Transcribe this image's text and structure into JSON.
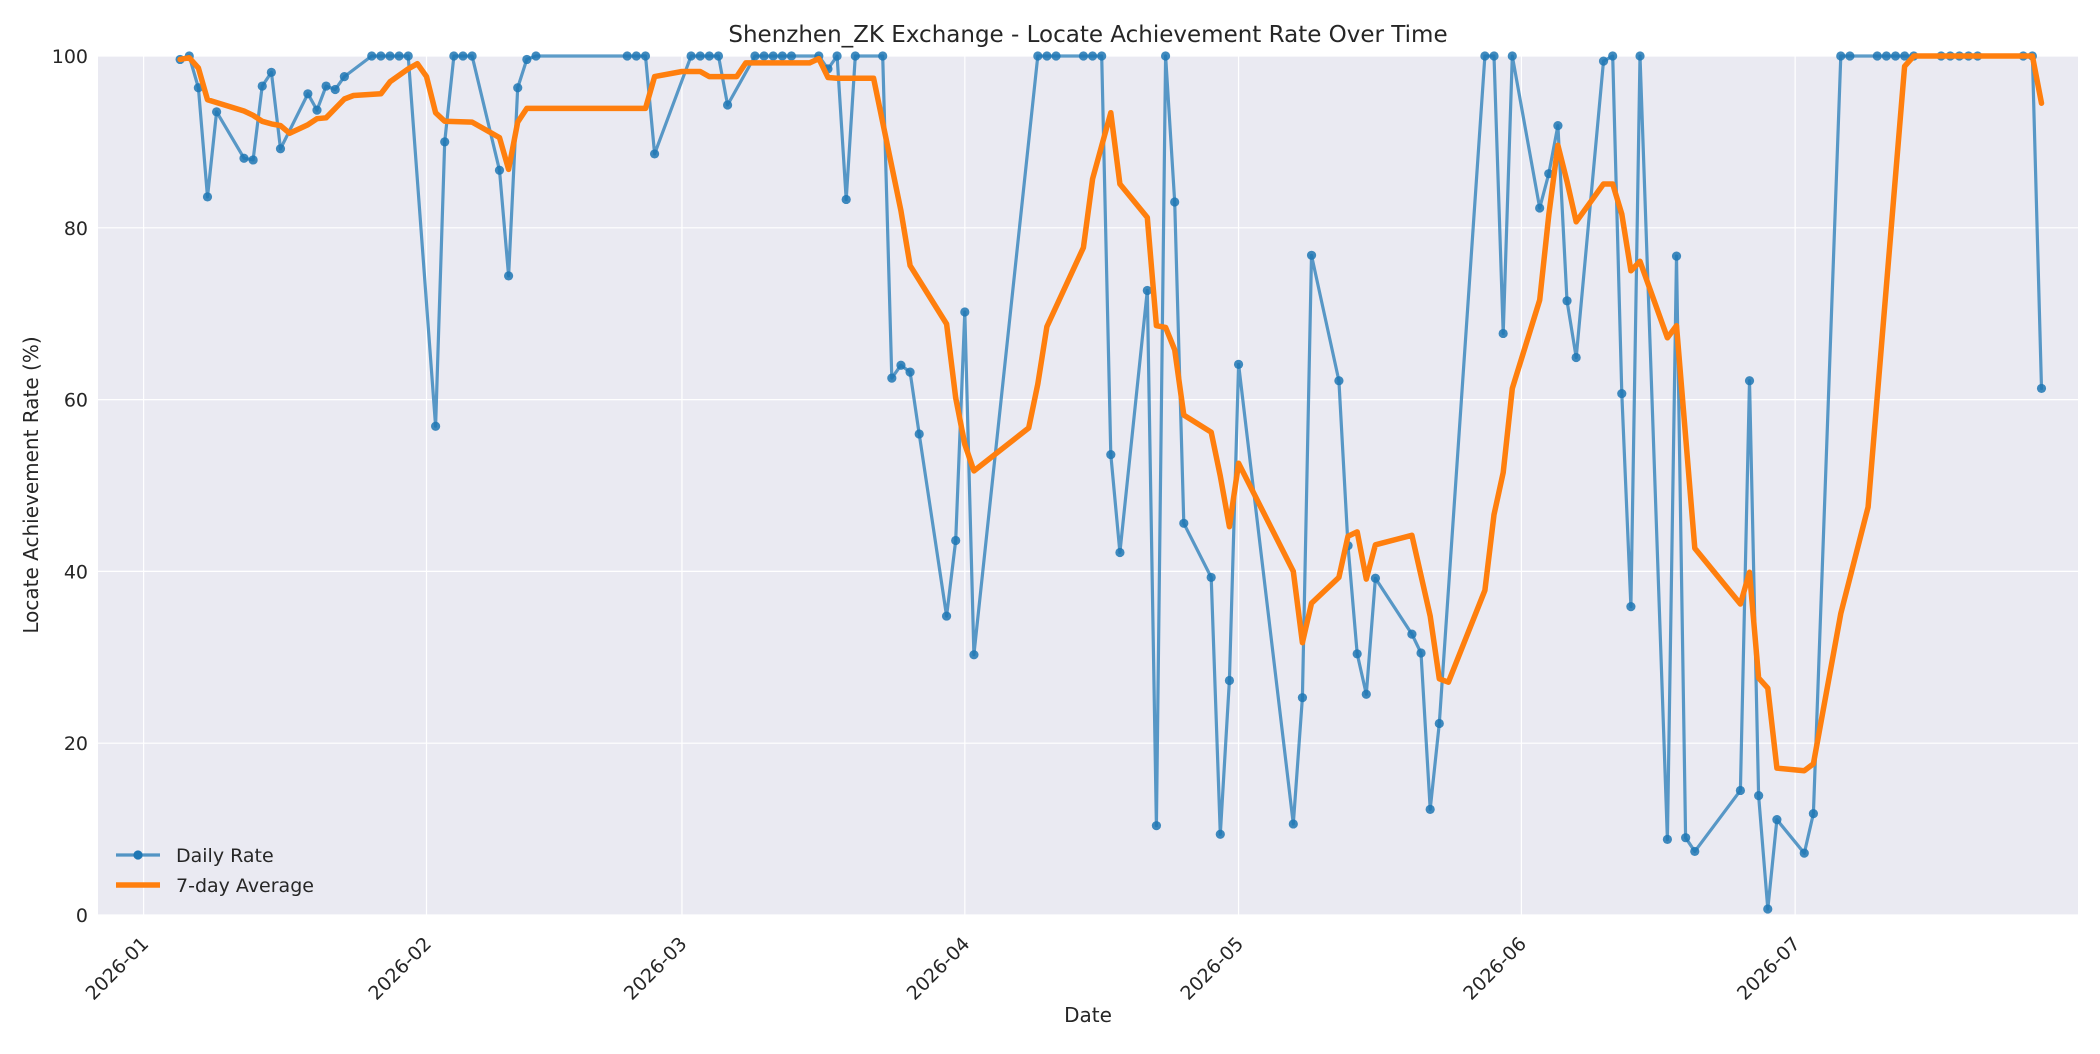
{
  "chart_data": {
    "type": "line",
    "title": "Shenzhen_ZK Exchange - Locate Achievement Rate Over Time",
    "xlabel": "Date",
    "ylabel": "Locate Achievement Rate (%)",
    "xlim": [
      "2025-12-27",
      "2026-08-01"
    ],
    "ylim": [
      0,
      100
    ],
    "x_ticks": [
      "2026-01-01",
      "2026-02-01",
      "2026-03-01",
      "2026-04-01",
      "2026-05-01",
      "2026-06-01",
      "2026-07-01"
    ],
    "x_tick_labels": [
      "2026-01",
      "2026-02",
      "2026-03",
      "2026-04",
      "2026-05",
      "2026-06",
      "2026-07"
    ],
    "y_ticks": [
      0,
      20,
      40,
      60,
      80,
      100
    ],
    "grid": true,
    "legend": "lower-left",
    "series": [
      {
        "name": "Daily Rate",
        "color": "#1f77b4",
        "style": "line-markers",
        "points": [
          [
            "2026-01-05",
            99.6
          ],
          [
            "2026-01-06",
            100
          ],
          [
            "2026-01-07",
            96.3
          ],
          [
            "2026-01-08",
            83.6
          ],
          [
            "2026-01-09",
            93.5
          ],
          [
            "2026-01-12",
            88.1
          ],
          [
            "2026-01-13",
            87.9
          ],
          [
            "2026-01-14",
            96.5
          ],
          [
            "2026-01-15",
            98.1
          ],
          [
            "2026-01-16",
            89.2
          ],
          [
            "2026-01-19",
            95.6
          ],
          [
            "2026-01-20",
            93.7
          ],
          [
            "2026-01-21",
            96.5
          ],
          [
            "2026-01-22",
            96.1
          ],
          [
            "2026-01-23",
            97.6
          ],
          [
            "2026-01-26",
            100
          ],
          [
            "2026-01-27",
            100
          ],
          [
            "2026-01-28",
            100
          ],
          [
            "2026-01-29",
            100
          ],
          [
            "2026-01-30",
            100
          ],
          [
            "2026-02-02",
            56.9
          ],
          [
            "2026-02-03",
            90
          ],
          [
            "2026-02-04",
            100
          ],
          [
            "2026-02-05",
            100
          ],
          [
            "2026-02-06",
            100
          ],
          [
            "2026-02-09",
            86.7
          ],
          [
            "2026-02-10",
            74.4
          ],
          [
            "2026-02-11",
            96.3
          ],
          [
            "2026-02-12",
            99.6
          ],
          [
            "2026-02-13",
            100
          ],
          [
            "2026-02-23",
            100
          ],
          [
            "2026-02-24",
            100
          ],
          [
            "2026-02-25",
            100
          ],
          [
            "2026-02-26",
            88.6
          ],
          [
            "2026-03-02",
            100
          ],
          [
            "2026-03-03",
            100
          ],
          [
            "2026-03-04",
            100
          ],
          [
            "2026-03-05",
            100
          ],
          [
            "2026-03-06",
            94.3
          ],
          [
            "2026-03-09",
            100
          ],
          [
            "2026-03-10",
            100
          ],
          [
            "2026-03-11",
            100
          ],
          [
            "2026-03-12",
            100
          ],
          [
            "2026-03-13",
            100
          ],
          [
            "2026-03-16",
            100
          ],
          [
            "2026-03-17",
            98.5
          ],
          [
            "2026-03-18",
            100
          ],
          [
            "2026-03-19",
            83.3
          ],
          [
            "2026-03-20",
            100
          ],
          [
            "2026-03-23",
            100
          ],
          [
            "2026-03-24",
            62.5
          ],
          [
            "2026-03-25",
            64
          ],
          [
            "2026-03-26",
            63.2
          ],
          [
            "2026-03-27",
            56
          ],
          [
            "2026-03-30",
            34.8
          ],
          [
            "2026-03-31",
            43.6
          ],
          [
            "2026-04-01",
            70.2
          ],
          [
            "2026-04-02",
            30.3
          ],
          [
            "2026-04-09",
            100
          ],
          [
            "2026-04-10",
            100
          ],
          [
            "2026-04-11",
            100
          ],
          [
            "2026-04-14",
            100
          ],
          [
            "2026-04-15",
            100
          ],
          [
            "2026-04-16",
            100
          ],
          [
            "2026-04-17",
            53.6
          ],
          [
            "2026-04-18",
            42.2
          ],
          [
            "2026-04-21",
            72.7
          ],
          [
            "2026-04-22",
            10.4
          ],
          [
            "2026-04-23",
            100
          ],
          [
            "2026-04-24",
            83
          ],
          [
            "2026-04-25",
            45.6
          ],
          [
            "2026-04-28",
            39.3
          ],
          [
            "2026-04-29",
            9.4
          ],
          [
            "2026-04-30",
            27.3
          ],
          [
            "2026-05-01",
            64.1
          ],
          [
            "2026-05-07",
            10.6
          ],
          [
            "2026-05-08",
            25.3
          ],
          [
            "2026-05-09",
            76.8
          ],
          [
            "2026-05-12",
            62.2
          ],
          [
            "2026-05-13",
            43
          ],
          [
            "2026-05-14",
            30.4
          ],
          [
            "2026-05-15",
            25.7
          ],
          [
            "2026-05-16",
            39.2
          ],
          [
            "2026-05-20",
            32.7
          ],
          [
            "2026-05-21",
            30.5
          ],
          [
            "2026-05-22",
            12.3
          ],
          [
            "2026-05-23",
            22.3
          ],
          [
            "2026-05-28",
            100
          ],
          [
            "2026-05-29",
            100
          ],
          [
            "2026-05-30",
            67.7
          ],
          [
            "2026-05-31",
            100
          ],
          [
            "2026-06-03",
            82.3
          ],
          [
            "2026-06-04",
            86.3
          ],
          [
            "2026-06-05",
            91.9
          ],
          [
            "2026-06-06",
            71.5
          ],
          [
            "2026-06-07",
            64.9
          ],
          [
            "2026-06-10",
            99.4
          ],
          [
            "2026-06-11",
            100
          ],
          [
            "2026-06-12",
            60.7
          ],
          [
            "2026-06-13",
            35.9
          ],
          [
            "2026-06-14",
            100
          ],
          [
            "2026-06-17",
            8.8
          ],
          [
            "2026-06-18",
            76.7
          ],
          [
            "2026-06-19",
            9
          ],
          [
            "2026-06-20",
            7.4
          ],
          [
            "2026-06-25",
            14.5
          ],
          [
            "2026-06-26",
            62.2
          ],
          [
            "2026-06-27",
            13.9
          ],
          [
            "2026-06-28",
            0.7
          ],
          [
            "2026-06-29",
            11.1
          ],
          [
            "2026-07-02",
            7.2
          ],
          [
            "2026-07-03",
            11.8
          ],
          [
            "2026-07-06",
            100
          ],
          [
            "2026-07-07",
            100
          ],
          [
            "2026-07-10",
            100
          ],
          [
            "2026-07-11",
            100
          ],
          [
            "2026-07-12",
            100
          ],
          [
            "2026-07-13",
            100
          ],
          [
            "2026-07-14",
            100
          ],
          [
            "2026-07-17",
            100
          ],
          [
            "2026-07-18",
            100
          ],
          [
            "2026-07-19",
            100
          ],
          [
            "2026-07-20",
            100
          ],
          [
            "2026-07-21",
            100
          ],
          [
            "2026-07-26",
            100
          ],
          [
            "2026-07-27",
            100
          ],
          [
            "2026-07-28",
            61.3
          ]
        ]
      },
      {
        "name": "7-day Average",
        "color": "#ff7f0e",
        "style": "line",
        "points": [
          [
            "2026-01-05",
            99.6
          ],
          [
            "2026-01-06",
            99.8
          ],
          [
            "2026-01-07",
            98.6
          ],
          [
            "2026-01-08",
            94.9
          ],
          [
            "2026-01-12",
            93.6
          ],
          [
            "2026-01-13",
            93.1
          ],
          [
            "2026-01-14",
            92.4
          ],
          [
            "2026-01-15",
            92.1
          ],
          [
            "2026-01-16",
            91.9
          ],
          [
            "2026-01-17",
            91
          ],
          [
            "2026-01-19",
            92
          ],
          [
            "2026-01-20",
            92.7
          ],
          [
            "2026-01-21",
            92.8
          ],
          [
            "2026-01-23",
            95
          ],
          [
            "2026-01-24",
            95.4
          ],
          [
            "2026-01-27",
            95.6
          ],
          [
            "2026-01-28",
            97
          ],
          [
            "2026-01-30",
            98.5
          ],
          [
            "2026-01-31",
            99.1
          ],
          [
            "2026-02-01",
            97.6
          ],
          [
            "2026-02-02",
            93.4
          ],
          [
            "2026-02-03",
            92.4
          ],
          [
            "2026-02-06",
            92.3
          ],
          [
            "2026-02-09",
            90.5
          ],
          [
            "2026-02-10",
            86.8
          ],
          [
            "2026-02-11",
            92.3
          ],
          [
            "2026-02-12",
            93.9
          ],
          [
            "2026-02-25",
            93.9
          ],
          [
            "2026-02-26",
            97.6
          ],
          [
            "2026-03-01",
            98.2
          ],
          [
            "2026-03-03",
            98.2
          ],
          [
            "2026-03-04",
            97.6
          ],
          [
            "2026-03-07",
            97.6
          ],
          [
            "2026-03-08",
            99.2
          ],
          [
            "2026-03-15",
            99.2
          ],
          [
            "2026-03-16",
            99.7
          ],
          [
            "2026-03-17",
            97.5
          ],
          [
            "2026-03-18",
            97.4
          ],
          [
            "2026-03-22",
            97.4
          ],
          [
            "2026-03-25",
            82
          ],
          [
            "2026-03-26",
            75.6
          ],
          [
            "2026-03-30",
            68.8
          ],
          [
            "2026-03-31",
            60.2
          ],
          [
            "2026-04-01",
            54.8
          ],
          [
            "2026-04-02",
            51.7
          ],
          [
            "2026-04-08",
            56.7
          ],
          [
            "2026-04-09",
            61.8
          ],
          [
            "2026-04-10",
            68.5
          ],
          [
            "2026-04-14",
            77.7
          ],
          [
            "2026-04-15",
            85.7
          ],
          [
            "2026-04-17",
            93.4
          ],
          [
            "2026-04-18",
            85.1
          ],
          [
            "2026-04-21",
            81.2
          ],
          [
            "2026-04-22",
            68.6
          ],
          [
            "2026-04-23",
            68.4
          ],
          [
            "2026-04-24",
            65.8
          ],
          [
            "2026-04-25",
            58.2
          ],
          [
            "2026-04-28",
            56.2
          ],
          [
            "2026-04-29",
            51.1
          ],
          [
            "2026-04-30",
            45.2
          ],
          [
            "2026-05-01",
            52.6
          ],
          [
            "2026-05-07",
            40
          ],
          [
            "2026-05-08",
            31.7
          ],
          [
            "2026-05-09",
            36.3
          ],
          [
            "2026-05-12",
            39.3
          ],
          [
            "2026-05-13",
            44.1
          ],
          [
            "2026-05-14",
            44.6
          ],
          [
            "2026-05-15",
            39.1
          ],
          [
            "2026-05-16",
            43.1
          ],
          [
            "2026-05-20",
            44.2
          ],
          [
            "2026-05-22",
            34.8
          ],
          [
            "2026-05-23",
            27.5
          ],
          [
            "2026-05-24",
            27.1
          ],
          [
            "2026-05-28",
            37.8
          ],
          [
            "2026-05-29",
            46.6
          ],
          [
            "2026-05-30",
            51.5
          ],
          [
            "2026-05-31",
            61.3
          ],
          [
            "2026-06-03",
            71.6
          ],
          [
            "2026-06-04",
            81.5
          ],
          [
            "2026-06-05",
            89.6
          ],
          [
            "2026-06-06",
            85.4
          ],
          [
            "2026-06-07",
            80.7
          ],
          [
            "2026-06-10",
            85.1
          ],
          [
            "2026-06-11",
            85.1
          ],
          [
            "2026-06-12",
            81.6
          ],
          [
            "2026-06-13",
            75
          ],
          [
            "2026-06-14",
            76.1
          ],
          [
            "2026-06-17",
            67.2
          ],
          [
            "2026-06-18",
            68.6
          ],
          [
            "2026-06-20",
            42.7
          ],
          [
            "2026-06-25",
            36.2
          ],
          [
            "2026-06-26",
            39.9
          ],
          [
            "2026-06-27",
            27.6
          ],
          [
            "2026-06-28",
            26.4
          ],
          [
            "2026-06-29",
            17.1
          ],
          [
            "2026-07-02",
            16.8
          ],
          [
            "2026-07-03",
            17.6
          ],
          [
            "2026-07-06",
            35.1
          ],
          [
            "2026-07-09",
            47.5
          ],
          [
            "2026-07-13",
            98.8
          ],
          [
            "2026-07-14",
            100
          ],
          [
            "2026-07-27",
            100
          ],
          [
            "2026-07-28",
            94.5
          ]
        ]
      }
    ]
  }
}
